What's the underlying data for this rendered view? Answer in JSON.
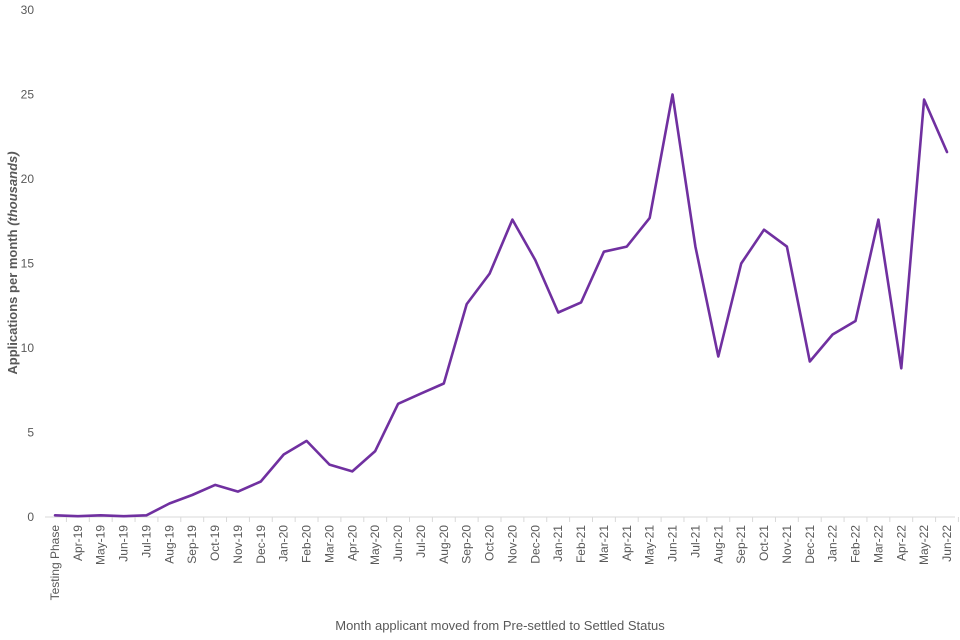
{
  "chart_data": {
    "type": "line",
    "title": "",
    "xlabel": "Month applicant moved from Pre-settled to Settled Status",
    "ylabel_prefix": "Applications per month ",
    "ylabel_emph": "(thousands)",
    "ylim": [
      0,
      30
    ],
    "yticks": [
      "0",
      "5",
      "10",
      "15",
      "20",
      "25",
      "30"
    ],
    "grid": false,
    "line_color": "#7030a0",
    "categories": [
      "Testing Phase",
      "Apr-19",
      "May-19",
      "Jun-19",
      "Jul-19",
      "Aug-19",
      "Sep-19",
      "Oct-19",
      "Nov-19",
      "Dec-19",
      "Jan-20",
      "Feb-20",
      "Mar-20",
      "Apr-20",
      "May-20",
      "Jun-20",
      "Jul-20",
      "Aug-20",
      "Sep-20",
      "Oct-20",
      "Nov-20",
      "Dec-20",
      "Jan-21",
      "Feb-21",
      "Mar-21",
      "Apr-21",
      "May-21",
      "Jun-21",
      "Jul-21",
      "Aug-21",
      "Sep-21",
      "Oct-21",
      "Nov-21",
      "Dec-21",
      "Jan-22",
      "Feb-22",
      "Mar-22",
      "Apr-22",
      "May-22",
      "Jun-22"
    ],
    "values": [
      0.1,
      0.05,
      0.1,
      0.05,
      0.1,
      0.8,
      1.3,
      1.9,
      1.5,
      2.1,
      3.7,
      4.5,
      3.1,
      2.7,
      3.9,
      6.7,
      7.3,
      7.9,
      12.6,
      14.4,
      17.6,
      15.2,
      12.1,
      12.7,
      15.7,
      16.0,
      17.7,
      25.0,
      16.0,
      9.5,
      15.0,
      17.0,
      16.0,
      9.2,
      10.8,
      11.6,
      17.6,
      8.8,
      24.7,
      21.6
    ]
  }
}
